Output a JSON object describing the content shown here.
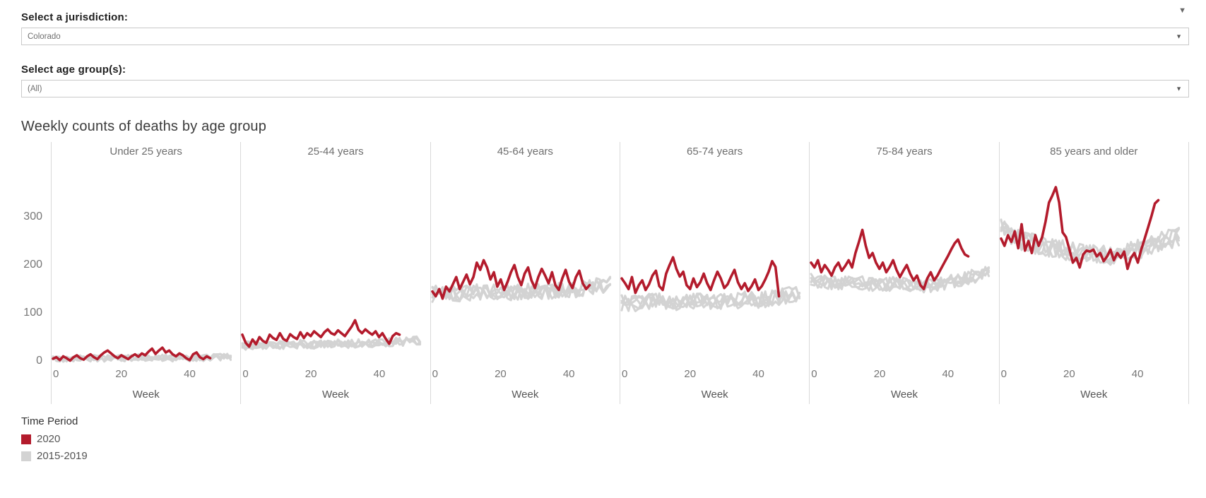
{
  "controls": {
    "jurisdiction_label": "Select a jurisdiction:",
    "jurisdiction_value": "Colorado",
    "age_group_label": "Select age group(s):",
    "age_group_value": "(All)"
  },
  "chart": {
    "title": "Weekly counts of deaths by age group"
  },
  "legend": {
    "title": "Time Period",
    "items": [
      {
        "label": "2020",
        "color": "#b31b2c"
      },
      {
        "label": "2015-2019",
        "color": "#d3d3d3"
      }
    ]
  },
  "icons": {
    "dropdown_caret": "▼",
    "top_caret": "▼"
  },
  "chart_data": {
    "type": "line",
    "title": "Weekly counts of deaths by age group",
    "x_label": "Week",
    "x_ticks": [
      0,
      20,
      40
    ],
    "y_ticks": [
      0,
      100,
      200,
      300
    ],
    "x_range_weeks": [
      0,
      52
    ],
    "y_range": [
      -10,
      410
    ],
    "colors": {
      "series_2020": "#b31b2c",
      "series_2015_2019": "#d3d3d3"
    },
    "panels": [
      {
        "title": "Under 25 years",
        "series_2020_weekly": [
          5,
          8,
          2,
          10,
          6,
          1,
          8,
          12,
          6,
          3,
          10,
          14,
          8,
          4,
          12,
          18,
          22,
          16,
          10,
          6,
          12,
          8,
          4,
          10,
          14,
          9,
          16,
          12,
          20,
          26,
          15,
          22,
          28,
          18,
          22,
          14,
          10,
          16,
          12,
          6,
          2,
          14,
          18,
          8,
          4,
          10,
          6
        ],
        "baseline_2015_2019": {
          "n_lines": 5,
          "weeks": 52,
          "mean_every_4_weeks": [
            5,
            5,
            6,
            6,
            6,
            6,
            7,
            7,
            7,
            6,
            6,
            7,
            8,
            9
          ],
          "spread": 7
        }
      },
      {
        "title": "25-44 years",
        "series_2020_weekly": [
          55,
          38,
          30,
          45,
          35,
          50,
          42,
          38,
          55,
          48,
          44,
          58,
          46,
          42,
          56,
          50,
          46,
          60,
          48,
          58,
          52,
          62,
          56,
          50,
          60,
          66,
          58,
          55,
          64,
          58,
          52,
          62,
          72,
          85,
          65,
          58,
          66,
          60,
          55,
          62,
          50,
          58,
          46,
          36,
          52,
          58,
          55
        ],
        "baseline_2015_2019": {
          "n_lines": 5,
          "weeks": 52,
          "mean_every_4_weeks": [
            32,
            33,
            34,
            34,
            35,
            35,
            34,
            36,
            36,
            37,
            38,
            39,
            41,
            43
          ],
          "spread": 9
        }
      },
      {
        "title": "45-64 years",
        "series_2020_weekly": [
          145,
          135,
          150,
          130,
          155,
          145,
          160,
          175,
          150,
          165,
          180,
          160,
          175,
          205,
          190,
          210,
          195,
          170,
          185,
          155,
          170,
          148,
          165,
          185,
          200,
          175,
          158,
          182,
          195,
          168,
          152,
          175,
          192,
          178,
          162,
          185,
          158,
          148,
          172,
          190,
          165,
          152,
          175,
          188,
          162,
          150,
          158
        ],
        "baseline_2015_2019": {
          "n_lines": 5,
          "weeks": 52,
          "mean_every_4_weeks": [
            140,
            142,
            141,
            143,
            145,
            142,
            144,
            146,
            143,
            146,
            148,
            151,
            156,
            160
          ],
          "spread": 17
        }
      },
      {
        "title": "65-74 years",
        "series_2020_weekly": [
          172,
          162,
          150,
          175,
          142,
          158,
          168,
          148,
          160,
          178,
          188,
          156,
          148,
          182,
          200,
          216,
          192,
          176,
          186,
          158,
          150,
          172,
          154,
          164,
          182,
          162,
          148,
          168,
          186,
          172,
          152,
          160,
          176,
          190,
          164,
          150,
          162,
          146,
          156,
          170,
          148,
          156,
          170,
          186,
          208,
          196,
          135
        ],
        "baseline_2015_2019": {
          "n_lines": 5,
          "weeks": 52,
          "mean_every_4_weeks": [
            122,
            120,
            123,
            125,
            121,
            124,
            126,
            122,
            125,
            128,
            127,
            131,
            136,
            142
          ],
          "spread": 17
        }
      },
      {
        "title": "75-84 years",
        "series_2020_weekly": [
          205,
          195,
          210,
          185,
          200,
          190,
          178,
          195,
          205,
          188,
          198,
          210,
          195,
          225,
          248,
          273,
          240,
          215,
          225,
          205,
          192,
          205,
          185,
          196,
          210,
          190,
          175,
          188,
          200,
          182,
          168,
          178,
          158,
          150,
          172,
          185,
          168,
          178,
          192,
          205,
          218,
          232,
          245,
          253,
          235,
          222,
          218
        ],
        "baseline_2015_2019": {
          "n_lines": 5,
          "weeks": 52,
          "mean_every_4_weeks": [
            168,
            165,
            162,
            166,
            160,
            158,
            162,
            157,
            155,
            158,
            163,
            169,
            177,
            187
          ],
          "spread": 15
        }
      },
      {
        "title": "85 years and older",
        "series_2020_weekly": [
          255,
          240,
          262,
          248,
          270,
          235,
          285,
          230,
          250,
          225,
          262,
          240,
          258,
          290,
          330,
          345,
          362,
          330,
          268,
          258,
          232,
          205,
          215,
          195,
          222,
          230,
          228,
          232,
          218,
          225,
          208,
          218,
          232,
          210,
          225,
          215,
          228,
          192,
          215,
          225,
          205,
          232,
          255,
          278,
          302,
          328,
          335
        ],
        "baseline_2015_2019": {
          "n_lines": 5,
          "weeks": 52,
          "mean_every_4_weeks": [
            288,
            256,
            247,
            241,
            234,
            228,
            224,
            221,
            220,
            226,
            232,
            241,
            251,
            257
          ],
          "spread": 21
        }
      }
    ]
  }
}
